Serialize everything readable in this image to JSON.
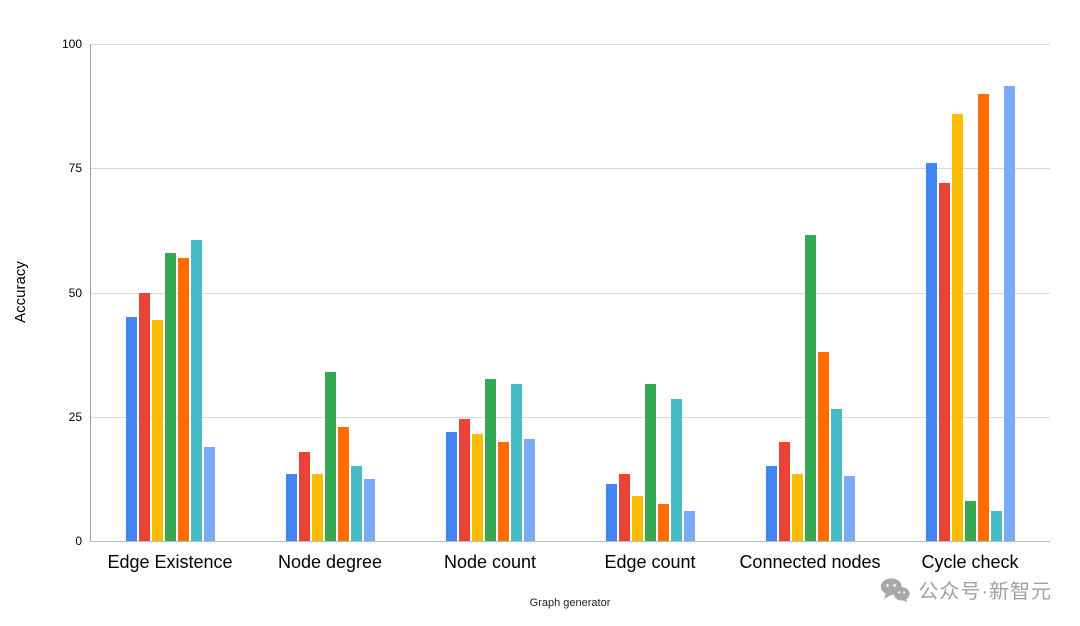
{
  "chart_data": {
    "type": "bar",
    "title": "",
    "xlabel": "Graph generator",
    "ylabel": "Accuracy",
    "ylim": [
      0,
      100
    ],
    "yticks": [
      0,
      25,
      50,
      75,
      100
    ],
    "grid": true,
    "legend": "none",
    "categories": [
      "Edge Existence",
      "Node degree",
      "Node count",
      "Edge count",
      "Connected nodes",
      "Cycle check"
    ],
    "series": [
      {
        "name": "blue",
        "color": "#4285F4",
        "values": [
          45,
          13.5,
          22,
          11.5,
          15,
          76
        ]
      },
      {
        "name": "red",
        "color": "#EA4335",
        "values": [
          50,
          18,
          24.5,
          13.5,
          20,
          72
        ]
      },
      {
        "name": "yellow",
        "color": "#FBBC04",
        "values": [
          44.5,
          13.5,
          21.5,
          9,
          13.5,
          86
        ]
      },
      {
        "name": "green",
        "color": "#34A853",
        "values": [
          58,
          34,
          32.5,
          31.5,
          61.5,
          8
        ]
      },
      {
        "name": "orange",
        "color": "#FF6D01",
        "values": [
          57,
          23,
          20,
          7.5,
          38,
          90
        ]
      },
      {
        "name": "teal",
        "color": "#46BDC6",
        "values": [
          60.5,
          15,
          31.5,
          28.5,
          26.5,
          6
        ]
      },
      {
        "name": "light-blue",
        "color": "#7BAAF7",
        "values": [
          19,
          12.5,
          20.5,
          6,
          13,
          91.5
        ]
      }
    ]
  },
  "watermark": {
    "icon": "wechat-icon",
    "text": "公众号·新智元"
  }
}
